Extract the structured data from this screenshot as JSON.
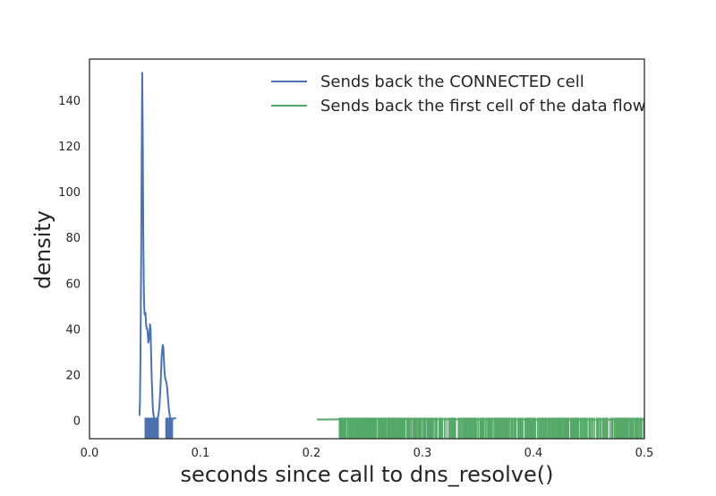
{
  "chart_data": {
    "type": "line",
    "title": "",
    "xlabel": "seconds since call to dns_resolve()",
    "ylabel": "density",
    "xlim": [
      0.0,
      0.5
    ],
    "ylim": [
      -8,
      158
    ],
    "xticks": [
      0.0,
      0.1,
      0.2,
      0.3,
      0.4,
      0.5
    ],
    "xtick_labels": [
      "0.0",
      "0.1",
      "0.2",
      "0.3",
      "0.4",
      "0.5"
    ],
    "yticks": [
      0,
      20,
      40,
      60,
      80,
      100,
      120,
      140
    ],
    "ytick_labels": [
      "0",
      "20",
      "40",
      "60",
      "80",
      "100",
      "120",
      "140"
    ],
    "grid": false,
    "legend_position": "top-right",
    "series": [
      {
        "name": "Sends back the CONNECTED cell",
        "color": "#4c72b0",
        "kind": "kde-with-rug",
        "x": [
          0.045,
          0.0455,
          0.046,
          0.0465,
          0.047,
          0.0475,
          0.048,
          0.0485,
          0.049,
          0.0495,
          0.05,
          0.0505,
          0.051,
          0.0515,
          0.052,
          0.0525,
          0.053,
          0.0535,
          0.054,
          0.0545,
          0.055,
          0.0555,
          0.056,
          0.0565,
          0.057,
          0.0575,
          0.058,
          0.0585,
          0.059,
          0.06,
          0.061,
          0.062,
          0.063,
          0.064,
          0.065,
          0.066,
          0.0665,
          0.067,
          0.0675,
          0.068,
          0.0685,
          0.069,
          0.0695,
          0.07,
          0.0705,
          0.071,
          0.0715,
          0.072,
          0.0725,
          0.073,
          0.074,
          0.075,
          0.076,
          0.077,
          0.078
        ],
        "y": [
          2,
          8,
          30,
          70,
          115,
          152,
          125,
          80,
          55,
          47,
          46,
          47,
          42,
          40,
          40,
          38,
          34,
          35,
          38,
          42,
          40,
          30,
          20,
          12,
          6,
          3,
          1.5,
          1,
          0.5,
          0.5,
          0.8,
          2,
          6,
          15,
          28,
          33,
          32,
          27,
          22,
          19,
          18,
          17,
          16,
          14,
          11,
          8,
          5,
          3,
          1.5,
          1,
          0.5,
          0.5,
          0.8,
          1,
          1
        ],
        "rug_range": [
          0.05,
          0.075
        ]
      },
      {
        "name": "Sends back the first cell of the data flow",
        "color": "#55a868",
        "kind": "kde-with-rug",
        "x": [
          0.205,
          0.21,
          0.22,
          0.225,
          0.23,
          0.25,
          0.3,
          0.35,
          0.4,
          0.45,
          0.5
        ],
        "y": [
          0.4,
          0.4,
          0.4,
          0.5,
          0.6,
          0.6,
          0.5,
          0.4,
          0.3,
          0.3,
          0.3
        ],
        "rug_range": [
          0.225,
          0.5
        ]
      }
    ]
  }
}
